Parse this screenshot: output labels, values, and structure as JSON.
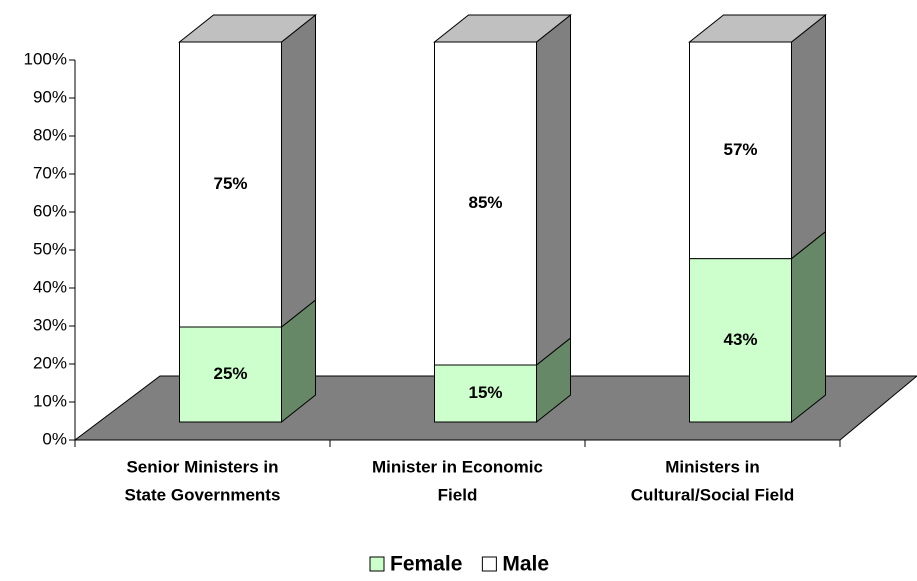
{
  "chart_data": {
    "type": "bar3d_stacked",
    "categories": [
      [
        "Senior Ministers in",
        "State Governments"
      ],
      [
        "Minister in Economic",
        "Field"
      ],
      [
        "Ministers in",
        "Cultural/Social Field"
      ]
    ],
    "series": [
      {
        "name": "Female",
        "color": "#ccffcc",
        "side_color": "#668866",
        "values": [
          25,
          15,
          43
        ],
        "value_labels": [
          "25%",
          "15%",
          "43%"
        ]
      },
      {
        "name": "Male",
        "color": "#ffffff",
        "side_color": "#808080",
        "values": [
          75,
          85,
          57
        ],
        "value_labels": [
          "75%",
          "85%",
          "57%"
        ]
      }
    ],
    "ylim": [
      0,
      100
    ],
    "yticks": [
      {
        "value": 0,
        "label": "0%"
      },
      {
        "value": 10,
        "label": "10%"
      },
      {
        "value": 20,
        "label": "20%"
      },
      {
        "value": 30,
        "label": "30%"
      },
      {
        "value": 40,
        "label": "40%"
      },
      {
        "value": 50,
        "label": "50%"
      },
      {
        "value": 60,
        "label": "60%"
      },
      {
        "value": 70,
        "label": "70%"
      },
      {
        "value": 80,
        "label": "80%"
      },
      {
        "value": 90,
        "label": "90%"
      },
      {
        "value": 100,
        "label": "100%"
      }
    ],
    "legend": "bottom"
  }
}
